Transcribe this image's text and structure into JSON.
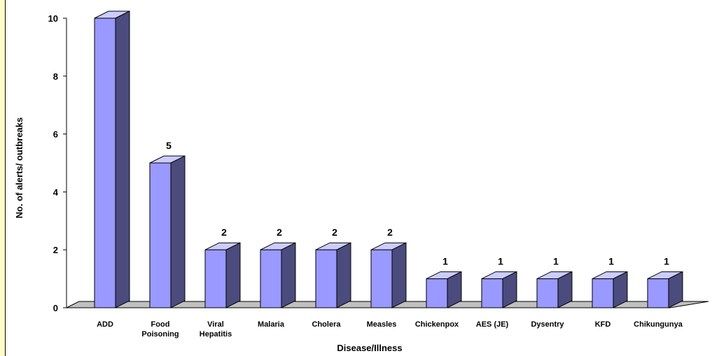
{
  "colors": {
    "bar_front": "#9999ff",
    "bar_side": "#4b4b7d",
    "bar_top": "#ccccff",
    "floor": "#c0c0c0",
    "left_border": "#fffcc8"
  },
  "chart_data": {
    "type": "bar",
    "title": "",
    "xlabel": "Disease/Illness",
    "ylabel": "No. of alerts/ outbreaks",
    "ylim": [
      0,
      10
    ],
    "yticks": [
      "0",
      "2",
      "4",
      "6",
      "8",
      "10"
    ],
    "grid": false,
    "legend": "none",
    "categories": [
      [
        "ADD"
      ],
      [
        "Food",
        "Poisoning"
      ],
      [
        "Viral",
        "Hepatitis"
      ],
      [
        "Malaria"
      ],
      [
        "Cholera"
      ],
      [
        "Measles"
      ],
      [
        "Chickenpox"
      ],
      [
        "AES (JE)"
      ],
      [
        "Dysentry"
      ],
      [
        "KFD"
      ],
      [
        "Chikungunya"
      ]
    ],
    "values": [
      10,
      5,
      2,
      2,
      2,
      2,
      1,
      1,
      1,
      1,
      1
    ],
    "data_labels": [
      "",
      "5",
      "2",
      "2",
      "2",
      "2",
      "1",
      "1",
      "1",
      "1",
      "1"
    ]
  }
}
